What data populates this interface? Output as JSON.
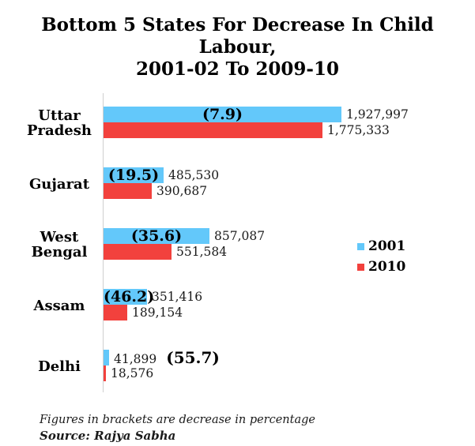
{
  "title": {
    "line1": "Bottom 5 States For Decrease In Child Labour,",
    "line2": "2001-02 To 2009-10"
  },
  "legend": [
    {
      "label": "2001",
      "color": "#63C8FA"
    },
    {
      "label": "2010",
      "color": "#F2413D"
    }
  ],
  "chart_data": {
    "type": "bar",
    "orientation": "horizontal",
    "title": "Bottom 5 States For Decrease In Child Labour, 2001-02 To 2009-10",
    "categories": [
      "Uttar Pradesh",
      "Gujarat",
      "West Bengal",
      "Assam",
      "Delhi"
    ],
    "category_label_lines": [
      [
        "Uttar",
        "Pradesh"
      ],
      [
        "Gujarat"
      ],
      [
        "West",
        "Bengal"
      ],
      [
        "Assam"
      ],
      [
        "Delhi"
      ]
    ],
    "series": [
      {
        "name": "2001",
        "color": "#63C8FA",
        "values": [
          1927997,
          485530,
          857087,
          351416,
          41899
        ],
        "value_labels": [
          "1,927,997",
          "485,530",
          "857,087",
          "351,416",
          "41,899"
        ]
      },
      {
        "name": "2010",
        "color": "#F2413D",
        "values": [
          1775333,
          390687,
          551584,
          189154,
          18576
        ],
        "value_labels": [
          "1,775,333",
          "390,687",
          "551,584",
          "189,154",
          "18,576"
        ]
      }
    ],
    "decrease_percentages": [
      "(7.9)",
      "(19.5)",
      "(35.6)",
      "(46.2)",
      "(55.7)"
    ],
    "xlim": [
      0,
      2100000
    ],
    "grid": false,
    "legend_position": "center-right"
  },
  "footnote": "Figures in brackets are decrease in percentage",
  "source": "Source: Rajya Sabha"
}
